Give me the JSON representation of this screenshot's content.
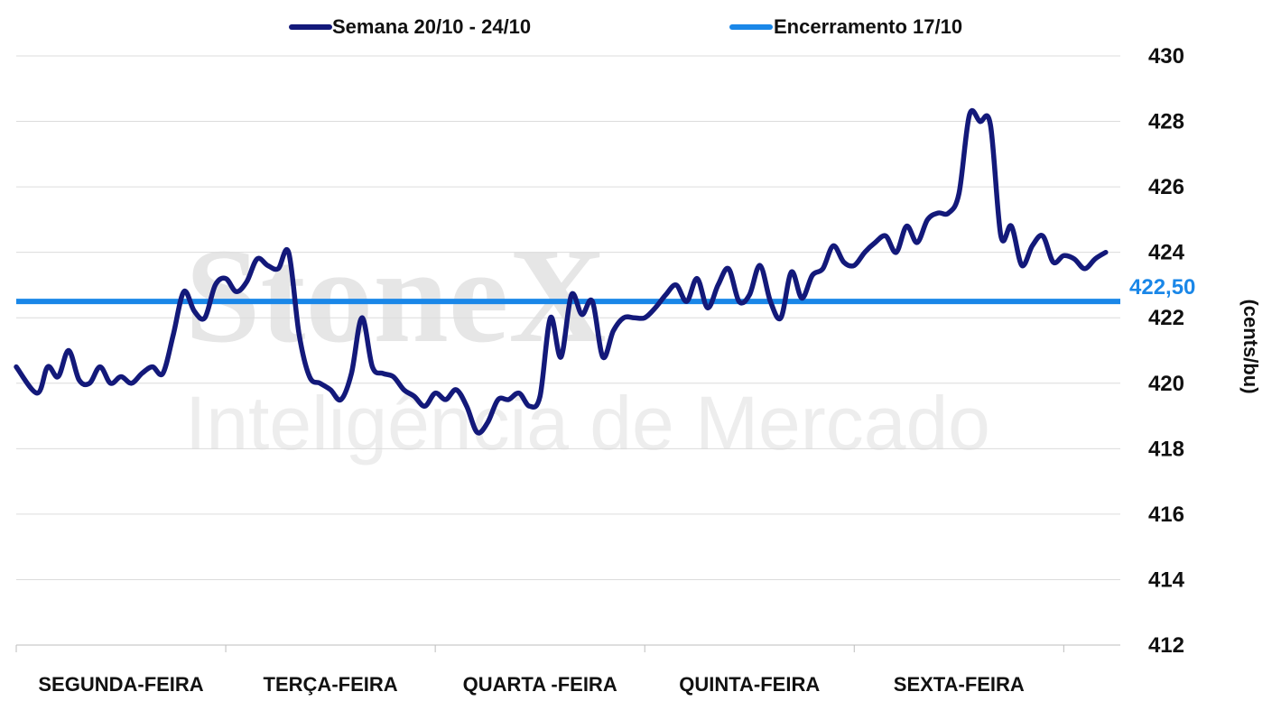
{
  "watermark": {
    "brand": "StoneX",
    "tagline": "Inteligência de Mercado"
  },
  "chart_data": {
    "type": "line",
    "ylabel": "(cents/bu)",
    "ylim": [
      412,
      430
    ],
    "yticks": [
      412,
      414,
      416,
      418,
      420,
      422,
      424,
      426,
      428,
      430
    ],
    "categories": [
      "SEGUNDA-FEIRA",
      "TERÇA-FEIRA",
      "QUARTA -FEIRA",
      "QUINTA-FEIRA",
      "SEXTA-FEIRA"
    ],
    "grid": true,
    "legend_position": "top",
    "colors": {
      "series": "#13197a",
      "reference": "#1a87e8"
    },
    "series": [
      {
        "name": "Semana 20/10 - 24/10",
        "x": [
          0.0,
          0.1,
          0.15,
          0.2,
          0.25,
          0.3,
          0.35,
          0.4,
          0.45,
          0.5,
          0.55,
          0.6,
          0.65,
          0.7,
          0.75,
          0.8,
          0.85,
          0.9,
          0.95,
          1.0,
          1.05,
          1.1,
          1.15,
          1.2,
          1.25,
          1.3,
          1.35,
          1.4,
          1.45,
          1.5,
          1.55,
          1.6,
          1.65,
          1.7,
          1.75,
          1.8,
          1.85,
          1.9,
          1.95,
          2.0,
          2.05,
          2.1,
          2.15,
          2.2,
          2.25,
          2.3,
          2.35,
          2.4,
          2.45,
          2.5,
          2.55,
          2.6,
          2.65,
          2.7,
          2.75,
          2.8,
          2.85,
          2.9,
          2.95,
          3.0,
          3.05,
          3.1,
          3.15,
          3.2,
          3.25,
          3.3,
          3.35,
          3.4,
          3.45,
          3.5,
          3.55,
          3.6,
          3.65,
          3.7,
          3.75,
          3.8,
          3.85,
          3.9,
          3.95,
          4.0,
          4.05,
          4.1,
          4.15,
          4.2,
          4.25,
          4.3,
          4.35,
          4.4,
          4.45,
          4.5,
          4.55,
          4.6,
          4.65,
          4.7,
          4.75,
          4.8,
          4.85,
          4.9,
          4.95,
          5.0,
          5.05,
          5.1,
          5.15,
          5.2
        ],
        "values": [
          420.5,
          419.7,
          420.5,
          420.2,
          421.0,
          420.1,
          420.0,
          420.5,
          420.0,
          420.2,
          420.0,
          420.3,
          420.5,
          420.3,
          421.5,
          422.8,
          422.2,
          422.0,
          423.0,
          423.2,
          422.8,
          423.1,
          423.8,
          423.6,
          423.5,
          424.0,
          421.5,
          420.2,
          420.0,
          419.8,
          419.5,
          420.3,
          422.0,
          420.5,
          420.3,
          420.2,
          419.8,
          419.6,
          419.3,
          419.7,
          419.5,
          419.8,
          419.3,
          418.5,
          418.8,
          419.5,
          419.5,
          419.7,
          419.3,
          419.6,
          422.0,
          420.8,
          422.7,
          422.1,
          422.5,
          420.8,
          421.6,
          422.0,
          422.0,
          422.0,
          422.3,
          422.7,
          423.0,
          422.5,
          423.2,
          422.3,
          423.0,
          423.5,
          422.5,
          422.7,
          423.6,
          422.5,
          422.0,
          423.4,
          422.6,
          423.3,
          423.5,
          424.2,
          423.7,
          423.6,
          424.0,
          424.3,
          424.5,
          424.0,
          424.8,
          424.3,
          425.0,
          425.2,
          425.2,
          425.8,
          428.2,
          428.0,
          427.9,
          424.5,
          424.8,
          423.6,
          424.2,
          424.5,
          423.7,
          423.9,
          423.8,
          423.5,
          423.8,
          424.0
        ]
      }
    ],
    "reference_line": {
      "name": "Encerramento 17/10",
      "value": 422.5,
      "label": "422,50"
    }
  }
}
